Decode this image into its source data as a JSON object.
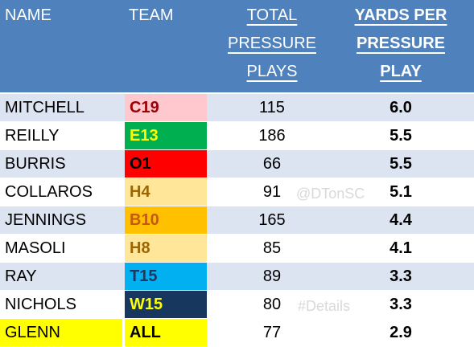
{
  "header": {
    "name": "NAME",
    "team": "TEAM",
    "total_lines": [
      "TOTAL",
      "PRESSURE",
      "PLAYS"
    ],
    "ypp_lines": [
      "YARDS PER",
      "PRESSURE",
      "PLAY"
    ]
  },
  "rows": [
    {
      "name": "MITCHELL",
      "team": "C19",
      "total": "115",
      "ypp": "6.0",
      "team_bg": "#ffc7ce",
      "team_fg": "#9c0006",
      "stripe": "even"
    },
    {
      "name": "REILLY",
      "team": "E13",
      "total": "186",
      "ypp": "5.5",
      "team_bg": "#00b050",
      "team_fg": "#ffff00",
      "stripe": "odd"
    },
    {
      "name": "BURRIS",
      "team": "O1",
      "total": "66",
      "ypp": "5.5",
      "team_bg": "#ff0000",
      "team_fg": "#000000",
      "stripe": "even"
    },
    {
      "name": "COLLAROS",
      "team": "H4",
      "total": "91",
      "ypp": "5.1",
      "team_bg": "#ffe699",
      "team_fg": "#9c6500",
      "stripe": "odd"
    },
    {
      "name": "JENNINGS",
      "team": "B10",
      "total": "165",
      "ypp": "4.4",
      "team_bg": "#ffc000",
      "team_fg": "#c65911",
      "stripe": "even"
    },
    {
      "name": "MASOLI",
      "team": "H8",
      "total": "85",
      "ypp": "4.1",
      "team_bg": "#ffe699",
      "team_fg": "#9c6500",
      "stripe": "odd"
    },
    {
      "name": "RAY",
      "team": "T15",
      "total": "89",
      "ypp": "3.3",
      "team_bg": "#00b0f0",
      "team_fg": "#1f3864",
      "stripe": "even"
    },
    {
      "name": "NICHOLS",
      "team": "W15",
      "total": "80",
      "ypp": "3.3",
      "team_bg": "#17375e",
      "team_fg": "#ffff00",
      "stripe": "odd"
    },
    {
      "name": "GLENN",
      "team": "ALL",
      "total": "77",
      "ypp": "2.9",
      "team_bg": "#ffff00",
      "team_fg": "#000000",
      "stripe": "glenn",
      "name_bg": "#ffff00"
    }
  ],
  "watermarks": {
    "handle": "@DTonSC",
    "tag": "#Details"
  },
  "colors": {
    "header_bg": "#4f81bd",
    "stripe_even": "#dbe4f0",
    "stripe_odd": "#ffffff"
  }
}
